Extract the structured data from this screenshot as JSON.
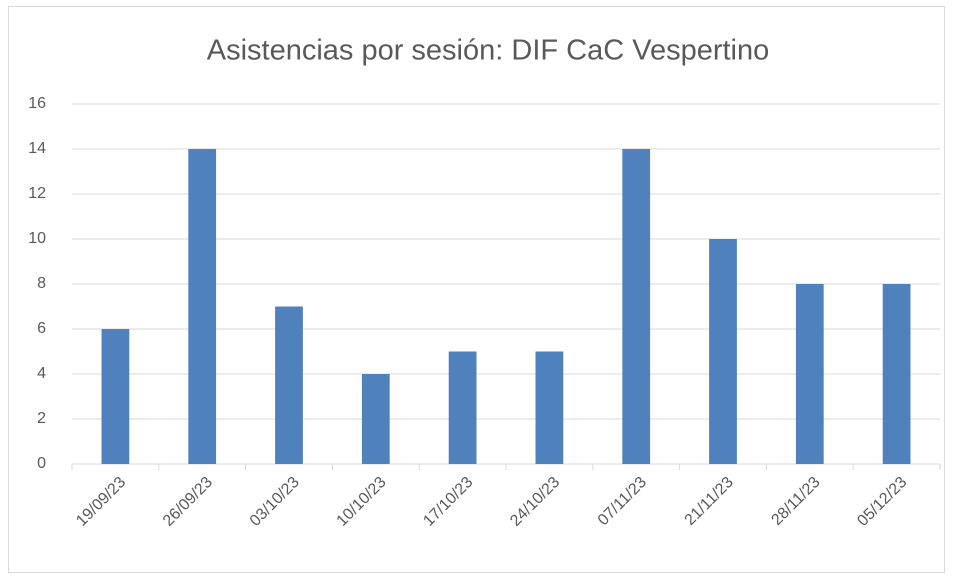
{
  "chart_data": {
    "type": "bar",
    "title": "Asistencias por sesión: DIF CaC Vespertino",
    "categories": [
      "19/09/23",
      "26/09/23",
      "03/10/23",
      "10/10/23",
      "17/10/23",
      "24/10/23",
      "07/11/23",
      "21/11/23",
      "28/11/23",
      "05/12/23"
    ],
    "values": [
      6,
      14,
      7,
      4,
      5,
      5,
      14,
      10,
      8,
      8
    ],
    "color": "#4f81bd",
    "ylim": [
      0,
      16
    ],
    "yticks": [
      0,
      2,
      4,
      6,
      8,
      10,
      12,
      14,
      16
    ],
    "grid": true
  }
}
